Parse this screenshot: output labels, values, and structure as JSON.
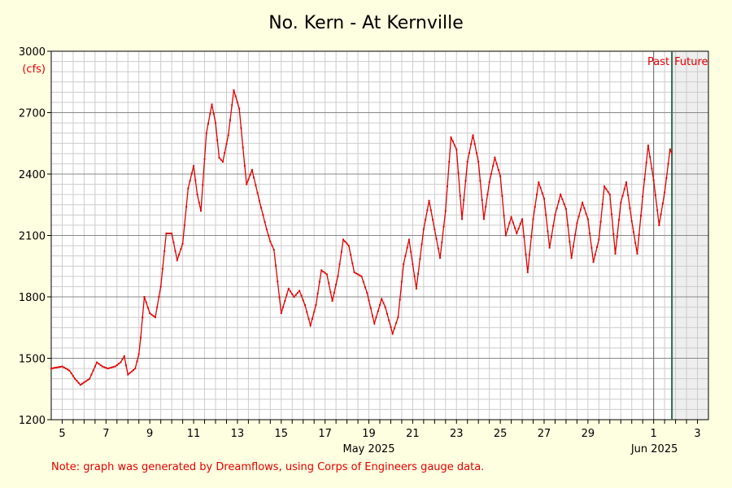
{
  "chart_data": {
    "type": "line",
    "title": "No. Kern - At Kernville",
    "unit_label": "(cfs)",
    "ylim": [
      1200,
      3000
    ],
    "yticks": [
      1200,
      1500,
      1800,
      2100,
      2400,
      2700,
      3000
    ],
    "xrange_days": [
      "2025-05-04T12:00",
      "2025-06-03T12:00"
    ],
    "xticks": [
      {
        "day": "2025-05-05",
        "label": "5"
      },
      {
        "day": "2025-05-07",
        "label": "7"
      },
      {
        "day": "2025-05-09",
        "label": "9"
      },
      {
        "day": "2025-05-11",
        "label": "11"
      },
      {
        "day": "2025-05-13",
        "label": "13"
      },
      {
        "day": "2025-05-15",
        "label": "15"
      },
      {
        "day": "2025-05-17",
        "label": "17"
      },
      {
        "day": "2025-05-19",
        "label": "19"
      },
      {
        "day": "2025-05-21",
        "label": "21"
      },
      {
        "day": "2025-05-23",
        "label": "23"
      },
      {
        "day": "2025-05-25",
        "label": "25"
      },
      {
        "day": "2025-05-27",
        "label": "27"
      },
      {
        "day": "2025-05-29",
        "label": "29"
      },
      {
        "day": "2025-06-01",
        "label": "1"
      },
      {
        "day": "2025-06-03",
        "label": "3"
      }
    ],
    "month_labels": [
      {
        "day": "2025-05-19",
        "label": "May 2025"
      },
      {
        "day": "2025-06-02",
        "label": "Jun 2025"
      }
    ],
    "past_label": "Past",
    "future_label": "Future",
    "now": "2025-06-01T20:00",
    "grid": true,
    "colors": {
      "series": "#e00000",
      "now_line": "#2e6b4f",
      "future_shade": "#eeeeee",
      "background": "#fefee0",
      "plot_bg": "#ffffff"
    },
    "series": [
      {
        "color": "#e00000",
        "x": [
          "2025-05-04T12:00",
          "2025-05-05T00:00",
          "2025-05-05T08:00",
          "2025-05-05T14:00",
          "2025-05-05T20:00",
          "2025-05-06T06:00",
          "2025-05-06T14:00",
          "2025-05-06T20:00",
          "2025-05-07T02:00",
          "2025-05-07T10:00",
          "2025-05-07T16:00",
          "2025-05-07T20:00",
          "2025-05-08T00:00",
          "2025-05-08T08:00",
          "2025-05-08T12:00",
          "2025-05-08T14:00",
          "2025-05-08T18:00",
          "2025-05-09T00:00",
          "2025-05-09T06:00",
          "2025-05-09T12:00",
          "2025-05-09T18:00",
          "2025-05-10T00:00",
          "2025-05-10T06:00",
          "2025-05-10T12:00",
          "2025-05-10T18:00",
          "2025-05-11T00:00",
          "2025-05-11T04:00",
          "2025-05-11T08:00",
          "2025-05-11T14:00",
          "2025-05-11T20:00",
          "2025-05-12T00:00",
          "2025-05-12T04:00",
          "2025-05-12T08:00",
          "2025-05-12T14:00",
          "2025-05-12T20:00",
          "2025-05-13T02:00",
          "2025-05-13T06:00",
          "2025-05-13T10:00",
          "2025-05-13T16:00",
          "2025-05-14T00:00",
          "2025-05-14T08:00",
          "2025-05-14T12:00",
          "2025-05-14T16:00",
          "2025-05-15T00:00",
          "2025-05-15T08:00",
          "2025-05-15T14:00",
          "2025-05-15T20:00",
          "2025-05-16T02:00",
          "2025-05-16T08:00",
          "2025-05-16T14:00",
          "2025-05-16T20:00",
          "2025-05-17T02:00",
          "2025-05-17T08:00",
          "2025-05-17T14:00",
          "2025-05-17T20:00",
          "2025-05-18T02:00",
          "2025-05-18T08:00",
          "2025-05-18T16:00",
          "2025-05-18T22:00",
          "2025-05-19T06:00",
          "2025-05-19T14:00",
          "2025-05-19T18:00",
          "2025-05-20T02:00",
          "2025-05-20T08:00",
          "2025-05-20T14:00",
          "2025-05-20T20:00",
          "2025-05-21T04:00",
          "2025-05-21T12:00",
          "2025-05-21T18:00",
          "2025-05-22T00:00",
          "2025-05-22T06:00",
          "2025-05-22T12:00",
          "2025-05-22T18:00",
          "2025-05-23T00:00",
          "2025-05-23T06:00",
          "2025-05-23T12:00",
          "2025-05-23T18:00",
          "2025-05-24T00:00",
          "2025-05-24T06:00",
          "2025-05-24T12:00",
          "2025-05-24T18:00",
          "2025-05-25T00:00",
          "2025-05-25T06:00",
          "2025-05-25T12:00",
          "2025-05-25T18:00",
          "2025-05-26T00:00",
          "2025-05-26T06:00",
          "2025-05-26T12:00",
          "2025-05-26T18:00",
          "2025-05-27T00:00",
          "2025-05-27T06:00",
          "2025-05-27T12:00",
          "2025-05-27T18:00",
          "2025-05-28T00:00",
          "2025-05-28T06:00",
          "2025-05-28T12:00",
          "2025-05-28T18:00",
          "2025-05-29T00:00",
          "2025-05-29T06:00",
          "2025-05-29T12:00",
          "2025-05-29T18:00",
          "2025-05-30T00:00",
          "2025-05-30T06:00",
          "2025-05-30T12:00",
          "2025-05-30T18:00",
          "2025-05-31T00:00",
          "2025-05-31T06:00",
          "2025-05-31T12:00",
          "2025-05-31T18:00",
          "2025-06-01T00:00",
          "2025-06-01T06:00",
          "2025-06-01T12:00",
          "2025-06-01T18:00",
          "2025-06-01T20:00"
        ],
        "y": [
          1450,
          1460,
          1440,
          1400,
          1370,
          1400,
          1480,
          1460,
          1450,
          1460,
          1480,
          1510,
          1420,
          1450,
          1520,
          1600,
          1800,
          1720,
          1700,
          1850,
          2110,
          2110,
          1980,
          2060,
          2330,
          2440,
          2300,
          2220,
          2600,
          2740,
          2650,
          2480,
          2460,
          2590,
          2810,
          2720,
          2530,
          2350,
          2420,
          2270,
          2130,
          2070,
          2030,
          1720,
          1840,
          1800,
          1830,
          1760,
          1660,
          1760,
          1930,
          1910,
          1780,
          1900,
          2080,
          2050,
          1920,
          1900,
          1820,
          1670,
          1790,
          1750,
          1620,
          1700,
          1960,
          2080,
          1840,
          2130,
          2270,
          2130,
          1990,
          2220,
          2580,
          2520,
          2180,
          2460,
          2590,
          2460,
          2180,
          2360,
          2480,
          2390,
          2100,
          2190,
          2110,
          2180,
          1920,
          2180,
          2360,
          2280,
          2040,
          2200,
          2300,
          2230,
          1990,
          2160,
          2260,
          2180,
          1970,
          2080,
          2340,
          2300,
          2010,
          2260,
          2360,
          2170,
          2010,
          2290,
          2540,
          2370,
          2150,
          2310,
          2520,
          2500
        ]
      }
    ]
  },
  "footer_note": "Note: graph was generated by Dreamflows, using Corps of Engineers gauge data."
}
